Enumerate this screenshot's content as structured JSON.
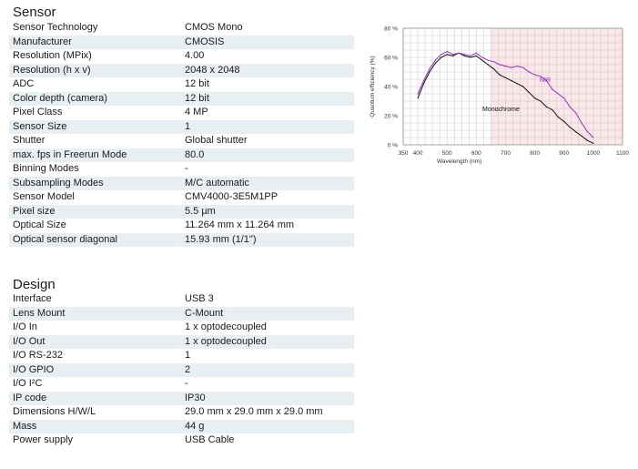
{
  "sensor": {
    "title": "Sensor",
    "rows": [
      {
        "label": "Sensor Technology",
        "value": "CMOS Mono"
      },
      {
        "label": "Manufacturer",
        "value": "CMOSIS"
      },
      {
        "label": "Resolution (MPix)",
        "value": "4.00"
      },
      {
        "label": "Resolution (h x v)",
        "value": "2048 x 2048"
      },
      {
        "label": "ADC",
        "value": "12 bit"
      },
      {
        "label": "Color depth (camera)",
        "value": "12 bit"
      },
      {
        "label": "Pixel Class",
        "value": "4 MP"
      },
      {
        "label": "Sensor Size",
        "value": "1"
      },
      {
        "label": "Shutter",
        "value": "Global shutter"
      },
      {
        "label": "max. fps in Freerun Mode",
        "value": "80.0"
      },
      {
        "label": "Binning Modes",
        "value": "-"
      },
      {
        "label": "Subsampling Modes",
        "value": "M/C automatic"
      },
      {
        "label": "Sensor Model",
        "value": "CMV4000-3E5M1PP"
      },
      {
        "label": "Pixel size",
        "value": "5.5 µm"
      },
      {
        "label": "Optical Size",
        "value": "11.264 mm x 11.264 mm"
      },
      {
        "label": "Optical sensor diagonal",
        "value": "15.93 mm (1/1\")"
      }
    ]
  },
  "design": {
    "title": "Design",
    "rows": [
      {
        "label": "Interface",
        "value": "USB 3"
      },
      {
        "label": "Lens Mount",
        "value": "C-Mount"
      },
      {
        "label": "I/O In",
        "value": "1 x optodecoupled"
      },
      {
        "label": "I/O Out",
        "value": "1 x optodecoupled"
      },
      {
        "label": "I/O RS-232",
        "value": "1"
      },
      {
        "label": "I/O GPIO",
        "value": "2"
      },
      {
        "label": "I/O I²C",
        "value": "-"
      },
      {
        "label": "IP code",
        "value": "IP30"
      },
      {
        "label": "Dimensions H/W/L",
        "value": "29.0 mm x 29.0 mm x 29.0 mm"
      },
      {
        "label": "Mass",
        "value": "44 g"
      },
      {
        "label": "Power supply",
        "value": "USB Cable"
      }
    ]
  },
  "chart_data": {
    "type": "line",
    "title": "",
    "xlabel": "Wavelength (nm)",
    "ylabel": "Quantum efficiency (%)",
    "xlim": [
      350,
      1100
    ],
    "ylim": [
      0,
      80
    ],
    "xticks": [
      "350",
      "400",
      "500",
      "600",
      "700",
      "800",
      "900",
      "1000",
      "1100"
    ],
    "xtick_values": [
      350,
      400,
      500,
      600,
      700,
      800,
      900,
      1000,
      1100
    ],
    "yticks": [
      "0 %",
      "20 %",
      "40 %",
      "60 %",
      "80 %"
    ],
    "ytick_values": [
      0,
      20,
      40,
      60,
      80
    ],
    "grid": true,
    "shaded_region": {
      "x_start": 650,
      "x_end": 1100,
      "color": "#fbe6e8"
    },
    "series": [
      {
        "name": "Monochrome",
        "color": "#111111",
        "x": [
          400,
          420,
          440,
          460,
          480,
          500,
          520,
          540,
          560,
          580,
          600,
          620,
          640,
          660,
          680,
          700,
          720,
          740,
          760,
          780,
          800,
          820,
          840,
          860,
          880,
          900,
          920,
          940,
          960,
          980,
          1000
        ],
        "y": [
          32,
          42,
          50,
          56,
          60,
          62,
          61,
          63,
          61,
          60,
          61,
          58,
          55,
          52,
          48,
          46,
          44,
          42,
          40,
          36,
          32,
          30,
          26,
          24,
          19,
          16,
          12,
          9,
          6,
          3,
          1
        ]
      },
      {
        "name": "NIR",
        "color": "#9a2fc2",
        "x": [
          400,
          420,
          440,
          460,
          480,
          500,
          520,
          540,
          560,
          580,
          600,
          620,
          640,
          660,
          680,
          700,
          720,
          740,
          760,
          780,
          800,
          820,
          840,
          860,
          880,
          900,
          920,
          940,
          960,
          980,
          1000
        ],
        "y": [
          35,
          44,
          52,
          58,
          62,
          64,
          62,
          63,
          62,
          61,
          63,
          60,
          58,
          57,
          55,
          54,
          53,
          54,
          53,
          50,
          48,
          47,
          44,
          38,
          35,
          32,
          26,
          22,
          15,
          9,
          5
        ]
      }
    ]
  }
}
